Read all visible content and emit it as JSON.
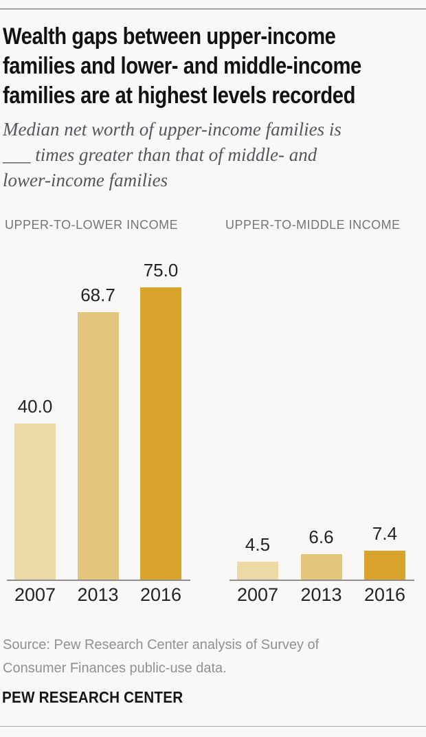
{
  "header": {
    "title_lines": [
      "Wealth gaps between upper-income",
      "families and lower- and middle-income",
      "families are at highest levels recorded"
    ],
    "subtitle_lines": [
      "Median net worth of upper-income families is",
      "___ times greater than that of middle- and",
      "lower-income families"
    ]
  },
  "chart_data": {
    "type": "bar",
    "title": "Wealth gaps between upper-income families and lower- and middle-income families are at highest levels recorded",
    "subtitle": "Median net worth of upper-income families is ___ times greater than that of middle- and lower-income families",
    "categories": [
      "2007",
      "2013",
      "2016"
    ],
    "groups": [
      {
        "label": "UPPER-TO-LOWER INCOME",
        "values": [
          40.0,
          68.7,
          75.0
        ],
        "value_labels": [
          "40.0",
          "68.7",
          "75.0"
        ]
      },
      {
        "label": "UPPER-TO-MIDDLE INCOME",
        "values": [
          4.5,
          6.6,
          7.4
        ],
        "value_labels": [
          "4.5",
          "6.6",
          "7.4"
        ]
      }
    ],
    "ylim": [
      0,
      75
    ],
    "grid": false,
    "value_labels_shown": true,
    "bar_colors_by_year": [
      "#ecd9a6",
      "#e4c57c",
      "#d8a42b"
    ],
    "axis_line_color": "#8e8e8e"
  },
  "footer": {
    "source_lines": [
      "Source: Pew Research Center analysis of Survey of",
      "Consumer Finances public-use data."
    ],
    "brand": "PEW RESEARCH CENTER"
  },
  "colors": {
    "background": "#f9f8f7",
    "title_text": "#121212",
    "subtitle_text": "#53565e",
    "column_label_text": "#72757a",
    "value_text": "#222426",
    "source_text": "#8f9195",
    "rule_line": "#a3a3a3"
  }
}
